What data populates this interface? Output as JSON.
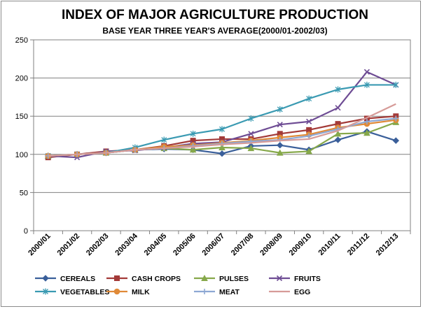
{
  "chart_data": {
    "type": "line",
    "title": "INDEX OF MAJOR AGRICULTURE PRODUCTION",
    "subtitle": "BASE YEAR THREE YEAR'S AVERAGE(2000/01-2002/03)",
    "xlabel": "",
    "ylabel": "",
    "ylim": [
      0,
      250
    ],
    "yticks": [
      0,
      50,
      100,
      150,
      200,
      250
    ],
    "grid": true,
    "legend_position": "bottom",
    "categories": [
      "2000/01",
      "2001/02",
      "2002/03",
      "2003/04",
      "2004/05",
      "2005/06",
      "2006/07",
      "2007/08",
      "2008/09",
      "2009/10",
      "2010/11",
      "2011/12",
      "2012/13"
    ],
    "series": [
      {
        "name": "CEREALS",
        "color": "#3a5f9a",
        "marker": "diamond",
        "values": [
          98,
          100,
          102,
          106,
          107,
          106,
          101,
          111,
          112,
          106,
          119,
          130,
          118
        ]
      },
      {
        "name": "CASH CROPS",
        "color": "#a33a38",
        "marker": "square",
        "values": [
          96,
          100,
          104,
          106,
          111,
          118,
          120,
          120,
          127,
          132,
          140,
          147,
          150
        ]
      },
      {
        "name": "PULSES",
        "color": "#86a84a",
        "marker": "triangle",
        "values": [
          98,
          100,
          102,
          106,
          108,
          106,
          109,
          108,
          102,
          104,
          127,
          128,
          142
        ]
      },
      {
        "name": "FRUITS",
        "color": "#6e4c94",
        "marker": "x",
        "values": [
          98,
          96,
          104,
          105,
          109,
          114,
          116,
          127,
          139,
          143,
          161,
          208,
          191
        ]
      },
      {
        "name": "VEGETABLES",
        "color": "#3a9ab2",
        "marker": "star",
        "values": [
          98,
          100,
          102,
          109,
          119,
          127,
          133,
          147,
          159,
          173,
          185,
          191,
          191
        ]
      },
      {
        "name": "MILK",
        "color": "#e08a38",
        "marker": "circle",
        "values": [
          98,
          100,
          102,
          106,
          110,
          112,
          115,
          118,
          122,
          126,
          135,
          140,
          145
        ]
      },
      {
        "name": "MEAT",
        "color": "#8ea8d4",
        "marker": "plus",
        "values": [
          98,
          100,
          102,
          106,
          108,
          111,
          114,
          117,
          119,
          124,
          133,
          143,
          147
        ]
      },
      {
        "name": "EGG",
        "color": "#d69b98",
        "marker": "none",
        "values": [
          98,
          100,
          102,
          106,
          108,
          110,
          113,
          115,
          118,
          120,
          131,
          148,
          166
        ]
      }
    ]
  }
}
